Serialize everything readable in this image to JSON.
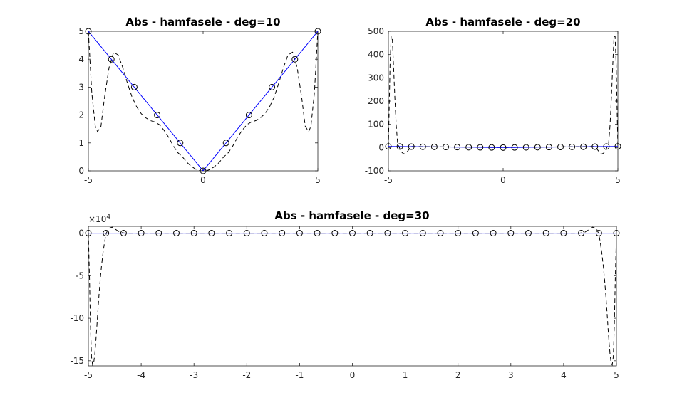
{
  "chart_data": [
    {
      "type": "line",
      "title": "Abs - hamfasele - deg=10",
      "xlabel": "",
      "ylabel": "",
      "xlim": [
        -5,
        5
      ],
      "ylim": [
        0,
        5
      ],
      "x_ticks": [
        "-5",
        "0",
        "5"
      ],
      "y_ticks": [
        "0",
        "1",
        "2",
        "3",
        "4",
        "5"
      ],
      "grid": false,
      "series": [
        {
          "style": "blue solid line with black circle markers",
          "color": "#0000ff",
          "marker_color": "#000000",
          "x": [
            -5,
            -4,
            -3,
            -2,
            -1,
            0,
            1,
            2,
            3,
            4,
            5
          ],
          "y": [
            5,
            4,
            3,
            2,
            1,
            0,
            1,
            2,
            3,
            4,
            5
          ]
        },
        {
          "style": "black dashed interpolating polynomial",
          "color": "#000000",
          "x": [
            -5,
            -4.85,
            -4.7,
            -4.6,
            -4.45,
            -4.3,
            -4.1,
            -3.9,
            -3.7,
            -3.5,
            -3.3,
            -3.1,
            -2.9,
            -2.7,
            -2.5,
            -2.3,
            -2.1,
            -1.9,
            -1.7,
            -1.5,
            -1.3,
            -1.1,
            -0.9,
            -0.7,
            -0.5,
            -0.3,
            -0.15,
            0,
            0.15,
            0.3,
            0.5,
            0.7,
            0.9,
            1.1,
            1.3,
            1.5,
            1.7,
            1.9,
            2.1,
            2.3,
            2.5,
            2.7,
            2.9,
            3.1,
            3.3,
            3.5,
            3.7,
            3.9,
            4.1,
            4.3,
            4.45,
            4.6,
            4.7,
            4.85,
            5
          ],
          "y": [
            5,
            2.8,
            1.6,
            1.4,
            1.6,
            2.6,
            3.7,
            4.25,
            4.15,
            3.7,
            3.15,
            2.65,
            2.3,
            2.05,
            1.9,
            1.8,
            1.75,
            1.65,
            1.45,
            1.2,
            0.9,
            0.65,
            0.5,
            0.3,
            0.15,
            0.05,
            0,
            0,
            0,
            0.05,
            0.15,
            0.3,
            0.5,
            0.65,
            0.9,
            1.2,
            1.45,
            1.65,
            1.75,
            1.8,
            1.9,
            2.05,
            2.3,
            2.65,
            3.15,
            3.7,
            4.15,
            4.25,
            3.7,
            2.6,
            1.6,
            1.4,
            1.6,
            2.8,
            5
          ]
        }
      ]
    },
    {
      "type": "line",
      "title": "Abs - hamfasele - deg=20",
      "xlabel": "",
      "ylabel": "",
      "xlim": [
        -5,
        5
      ],
      "ylim": [
        -100,
        500
      ],
      "x_ticks": [
        "-5",
        "0",
        "5"
      ],
      "y_ticks": [
        "-100",
        "0",
        "100",
        "200",
        "300",
        "400",
        "500"
      ],
      "grid": false,
      "series": [
        {
          "style": "blue solid line with black circle markers",
          "color": "#0000ff",
          "marker_color": "#000000",
          "x": [
            -5,
            -4.5,
            -4,
            -3.5,
            -3,
            -2.5,
            -2,
            -1.5,
            -1,
            -0.5,
            0,
            0.5,
            1,
            1.5,
            2,
            2.5,
            3,
            3.5,
            4,
            4.5,
            5
          ],
          "y": [
            5,
            4.5,
            4,
            3.5,
            3,
            2.5,
            2,
            1.5,
            1,
            0.5,
            0,
            0.5,
            1,
            1.5,
            2,
            2.5,
            3,
            3.5,
            4,
            4.5,
            5
          ]
        },
        {
          "style": "black dashed interpolating polynomial",
          "color": "#000000",
          "x": [
            -5,
            -4.97,
            -4.93,
            -4.88,
            -4.83,
            -4.78,
            -4.72,
            -4.66,
            -4.6,
            -4.5,
            -4.4,
            -4.3,
            -4.2,
            -4.1,
            -4,
            -3.5,
            0,
            3.5,
            4,
            4.1,
            4.2,
            4.3,
            4.4,
            4.5,
            4.6,
            4.66,
            4.72,
            4.78,
            4.83,
            4.88,
            4.93,
            4.97,
            5
          ],
          "y": [
            5,
            150,
            350,
            480,
            470,
            360,
            220,
            100,
            20,
            -5,
            -22,
            -28,
            -20,
            -8,
            5,
            4,
            0,
            4,
            5,
            -8,
            -20,
            -28,
            -22,
            -5,
            20,
            100,
            220,
            360,
            470,
            480,
            350,
            150,
            5
          ]
        }
      ]
    },
    {
      "type": "line",
      "title": "Abs - hamfasele - deg=30",
      "xlabel": "",
      "ylabel": "",
      "y_exponent_label": "×10",
      "y_exponent_power": "4",
      "xlim": [
        -5,
        5
      ],
      "ylim": [
        -15.6,
        0.8
      ],
      "x_ticks": [
        "-5",
        "-4",
        "-3",
        "-2",
        "-1",
        "0",
        "1",
        "2",
        "3",
        "4",
        "5"
      ],
      "y_ticks": [
        "-15",
        "-10",
        "-5",
        "0"
      ],
      "grid": false,
      "series": [
        {
          "style": "blue solid line with black circle markers",
          "color": "#0000ff",
          "marker_color": "#000000",
          "x": [
            -5,
            -4.667,
            -4.333,
            -4,
            -3.667,
            -3.333,
            -3,
            -2.667,
            -2.333,
            -2,
            -1.667,
            -1.333,
            -1,
            -0.667,
            -0.333,
            0,
            0.333,
            0.667,
            1,
            1.333,
            1.667,
            2,
            2.333,
            2.667,
            3,
            3.333,
            3.667,
            4,
            4.333,
            4.667,
            5
          ],
          "y": [
            0.0005,
            0.00047,
            0.00043,
            0.0004,
            0.00037,
            0.00033,
            0.0003,
            0.00027,
            0.00023,
            0.0002,
            0.00017,
            0.00013,
            0.0001,
            7e-05,
            3e-05,
            0,
            3e-05,
            7e-05,
            0.0001,
            0.00013,
            0.00017,
            0.0002,
            0.00023,
            0.00027,
            0.0003,
            0.00033,
            0.00037,
            0.0004,
            0.00043,
            0.00047,
            0.0005
          ]
        },
        {
          "style": "black dashed interpolating polynomial",
          "color": "#000000",
          "x": [
            -5,
            -4.98,
            -4.96,
            -4.94,
            -4.92,
            -4.9,
            -4.88,
            -4.86,
            -4.84,
            -4.82,
            -4.8,
            -4.78,
            -4.75,
            -4.72,
            -4.69,
            -4.66,
            -4.63,
            -4.6,
            -4.55,
            -4.5,
            -4.45,
            -4.4,
            -4.3,
            0,
            4.3,
            4.4,
            4.45,
            4.5,
            4.55,
            4.6,
            4.63,
            4.66,
            4.69,
            4.72,
            4.75,
            4.78,
            4.8,
            4.82,
            4.84,
            4.86,
            4.88,
            4.9,
            4.92,
            4.94,
            4.96,
            4.98,
            5
          ],
          "y": [
            0,
            -5,
            -11,
            -14.5,
            -15.5,
            -15.3,
            -14.3,
            -12.8,
            -11,
            -9.2,
            -7.4,
            -5.8,
            -3.8,
            -2.2,
            -0.9,
            0,
            0.4,
            0.6,
            0.7,
            0.5,
            0.3,
            0.1,
            0,
            0,
            0,
            0.1,
            0.3,
            0.5,
            0.7,
            0.6,
            0.4,
            0,
            -0.9,
            -2.2,
            -3.8,
            -5.8,
            -7.4,
            -9.2,
            -11,
            -12.8,
            -14.3,
            -15.3,
            -15.5,
            -14.5,
            -11,
            -5,
            0
          ]
        }
      ]
    }
  ]
}
